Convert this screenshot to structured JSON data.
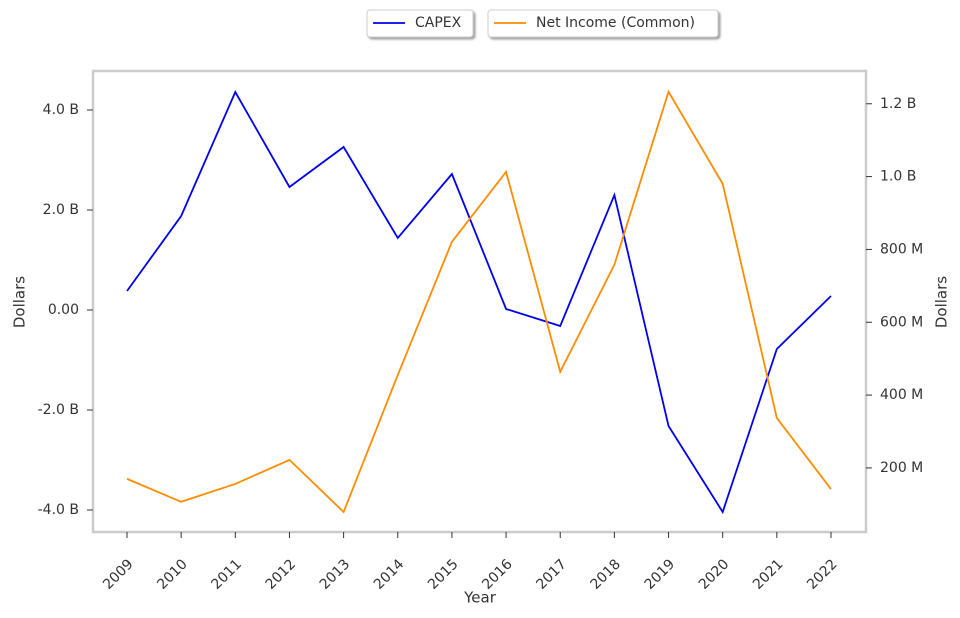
{
  "chart_data": {
    "type": "line",
    "x_label": "Year",
    "y_label": "Dollars",
    "y2_label": "Dollars",
    "categories": [
      "2009",
      "2010",
      "2011",
      "2012",
      "2013",
      "2014",
      "2015",
      "2016",
      "2017",
      "2018",
      "2019",
      "2020",
      "2021",
      "2022"
    ],
    "series": [
      {
        "name": "CAPEX",
        "color": "#0000ee",
        "values": [
          380000000,
          1880000000,
          4360000000,
          2460000000,
          3260000000,
          1440000000,
          2720000000,
          20000000,
          -320000000,
          2300000000,
          -2320000000,
          -4040000000,
          -780000000,
          280000000
        ]
      },
      {
        "name": "Net Income (Common)",
        "color": "#ff8c00",
        "axis": "y2",
        "values": [
          170000000,
          107000000,
          156000000,
          222000000,
          79000000,
          455000000,
          821000000,
          1013000000,
          464000000,
          758000000,
          1233000000,
          980000000,
          337000000,
          142000000
        ]
      }
    ],
    "ylim": [
      -4440000000,
      4780000000
    ],
    "yticks": [
      {
        "value": -4000000000,
        "label": "-4.0 B"
      },
      {
        "value": -2000000000,
        "label": "-2.0 B"
      },
      {
        "value": 0,
        "label": "0.00"
      },
      {
        "value": 2000000000,
        "label": "2.0 B"
      },
      {
        "value": 4000000000,
        "label": "4.0 B"
      }
    ],
    "y2lim": [
      24000000,
      1290000000
    ],
    "y2ticks": [
      {
        "value": 200000000,
        "label": "200 M"
      },
      {
        "value": 400000000,
        "label": "400 M"
      },
      {
        "value": 600000000,
        "label": "600 M"
      },
      {
        "value": 800000000,
        "label": "800 M"
      },
      {
        "value": 1000000000,
        "label": "1.0 B"
      },
      {
        "value": 1200000000,
        "label": "1.2 B"
      }
    ],
    "legend": "top"
  }
}
